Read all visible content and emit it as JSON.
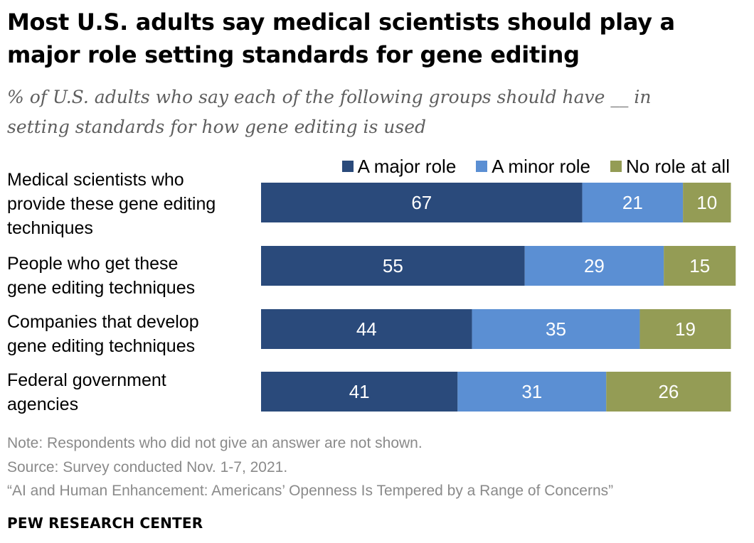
{
  "title_line1": "Most U.S. adults say medical scientists should play a",
  "title_line2": "major role setting standards for gene editing",
  "subtitle_line1": "% of U.S. adults who say each of the following groups should have __ in",
  "subtitle_line2": "setting standards for how gene editing is used",
  "colors": {
    "major": "#2a4a7b",
    "minor": "#5b8fd3",
    "none": "#949c55"
  },
  "chart_data": {
    "type": "bar",
    "orientation": "horizontal",
    "stacked": true,
    "categories": [
      "Medical scientists who provide these gene editing techniques",
      "People who get these gene editing techniques",
      "Companies that develop gene editing techniques",
      "Federal government agencies"
    ],
    "category_lines": [
      [
        "Medical scientists who",
        "provide these gene editing",
        "techniques"
      ],
      [
        "People who get these",
        "gene editing techniques"
      ],
      [
        "Companies that develop",
        "gene editing techniques"
      ],
      [
        "Federal government",
        "agencies"
      ]
    ],
    "series": [
      {
        "name": "A major role",
        "values": [
          67,
          55,
          44,
          41
        ]
      },
      {
        "name": "A minor role",
        "values": [
          21,
          29,
          35,
          31
        ]
      },
      {
        "name": "No role at all",
        "values": [
          10,
          15,
          19,
          26
        ]
      }
    ],
    "xlim": [
      0,
      100
    ],
    "legend_position": "top-right"
  },
  "note": "Note: Respondents who did not give an answer are not shown.",
  "source": "Source: Survey conducted Nov. 1-7, 2021.",
  "report": "“AI and Human Enhancement: Americans’ Openness Is Tempered by a Range of Concerns”",
  "brand": "PEW RESEARCH CENTER"
}
